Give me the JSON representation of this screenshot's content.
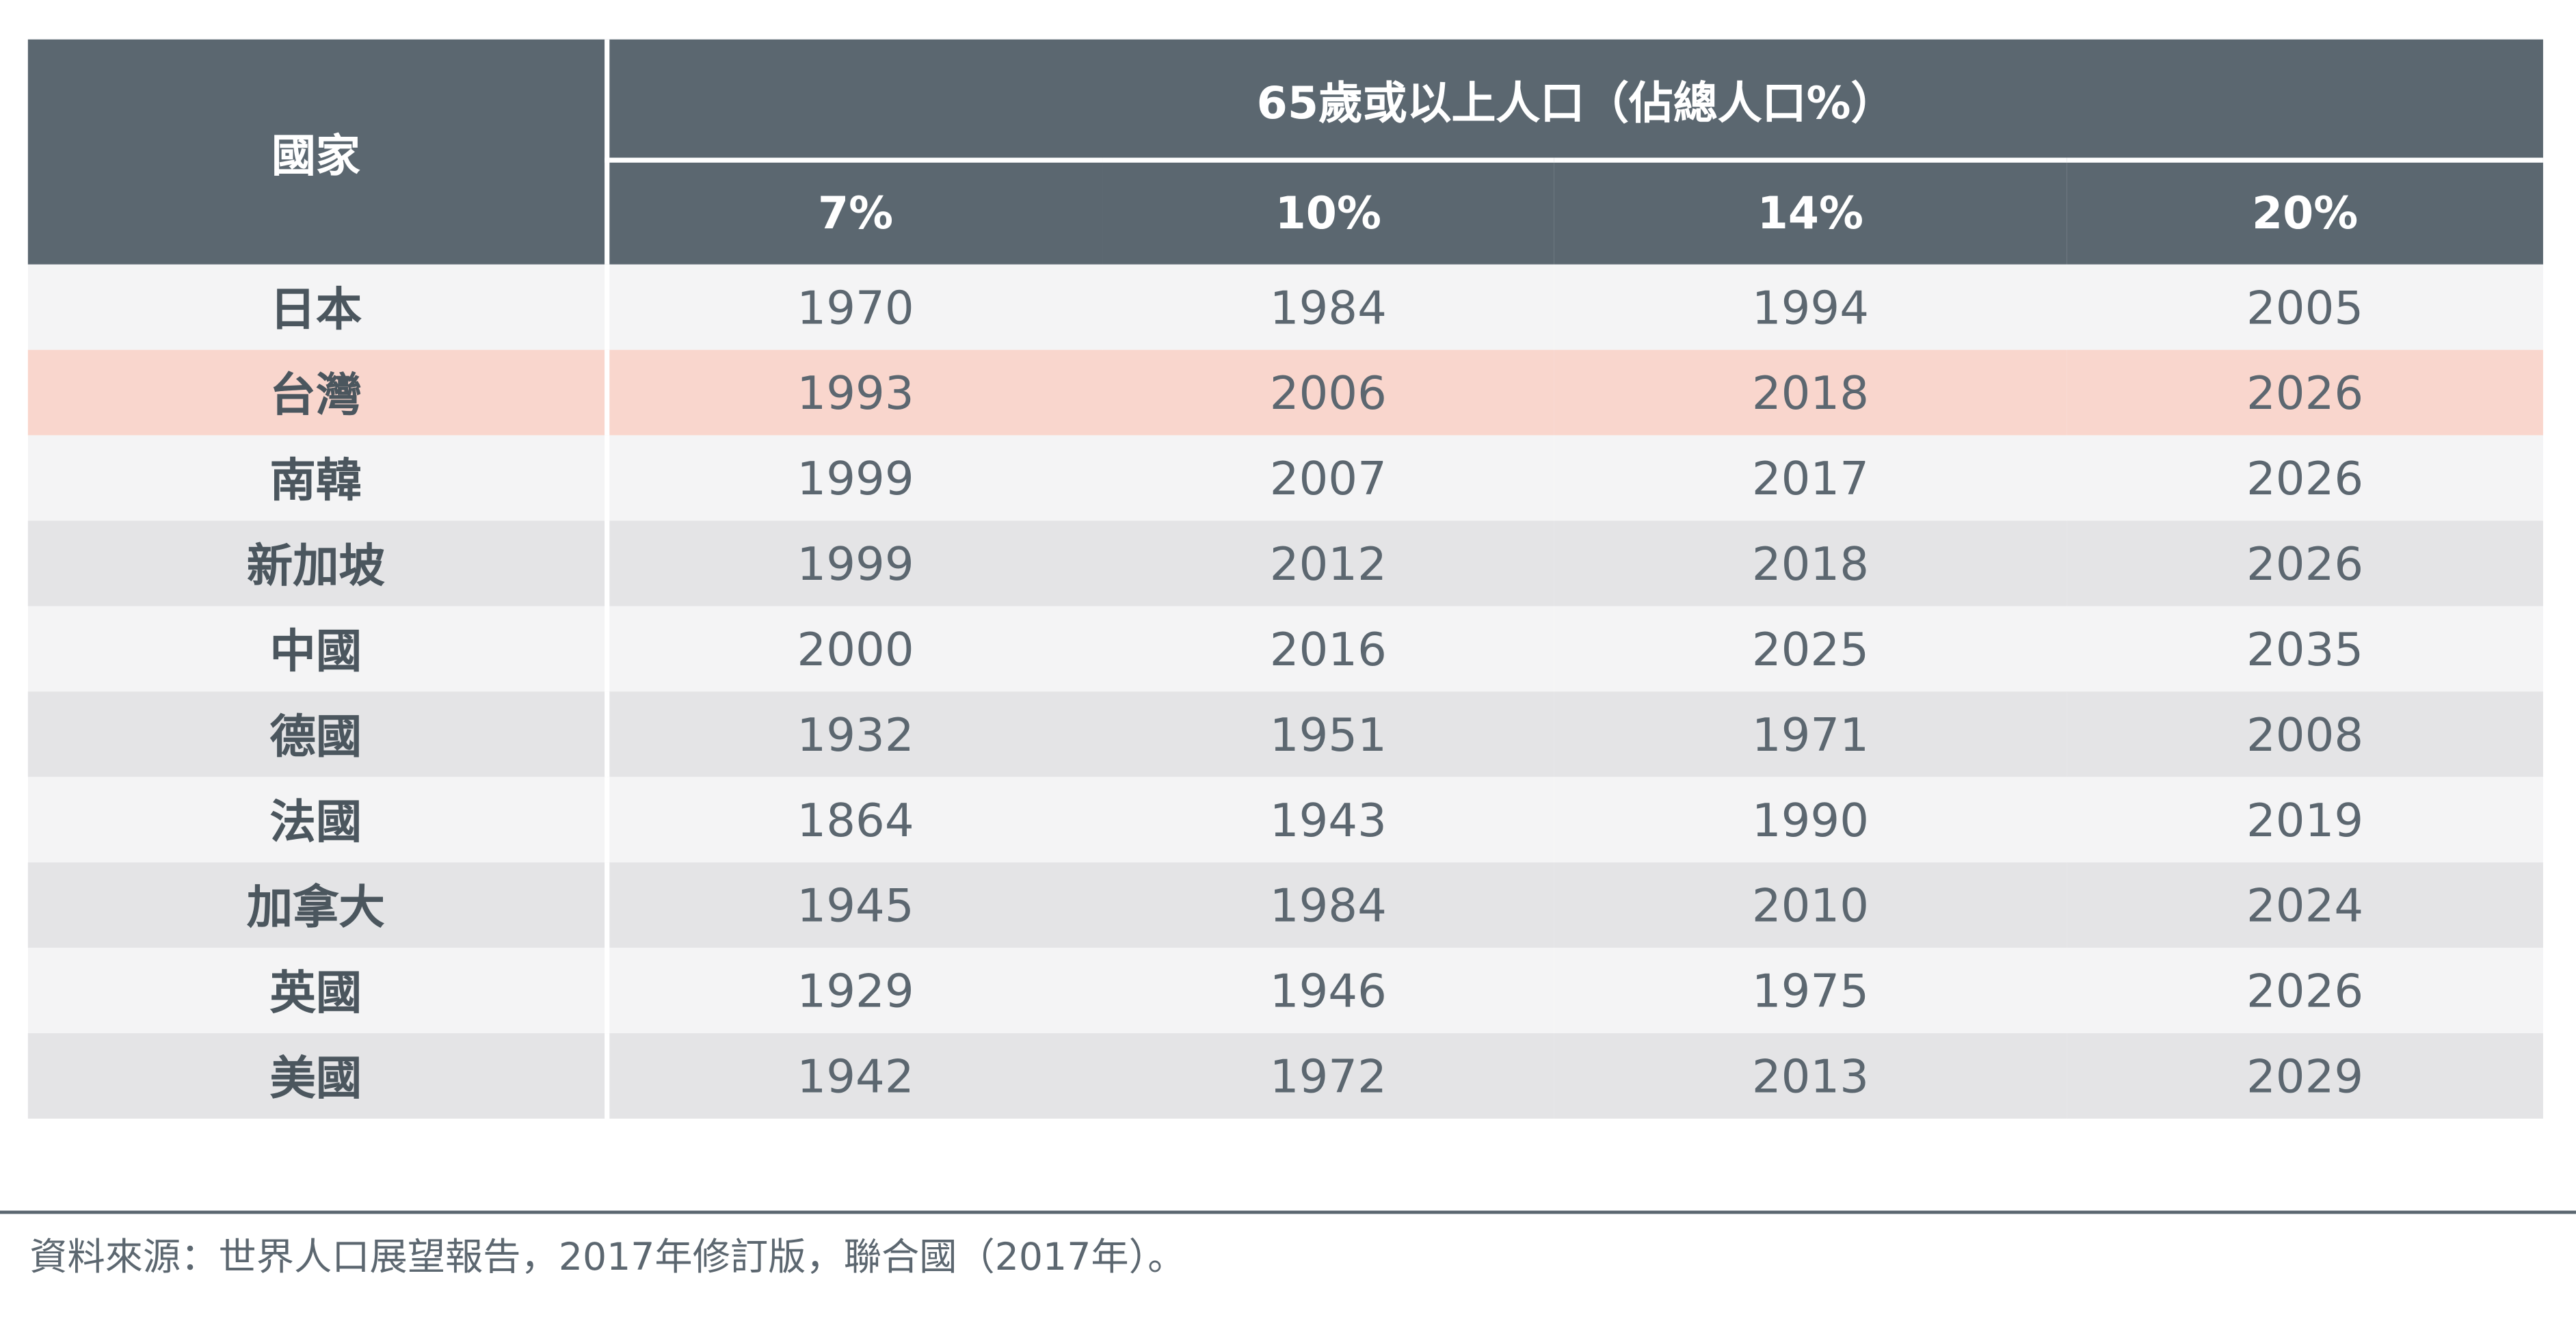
{
  "chart_data": {
    "type": "table",
    "header": {
      "country_label": "國家",
      "group_label": "65歲或以上人口（佔總人口%）",
      "columns": [
        "7%",
        "10%",
        "14%",
        "20%"
      ]
    },
    "rows": [
      {
        "country": "日本",
        "values": [
          "1970",
          "1984",
          "1994",
          "2005"
        ]
      },
      {
        "country": "台灣",
        "values": [
          "1993",
          "2006",
          "2018",
          "2026"
        ],
        "highlight": true
      },
      {
        "country": "南韓",
        "values": [
          "1999",
          "2007",
          "2017",
          "2026"
        ]
      },
      {
        "country": "新加坡",
        "values": [
          "1999",
          "2012",
          "2018",
          "2026"
        ]
      },
      {
        "country": "中國",
        "values": [
          "2000",
          "2016",
          "2025",
          "2035"
        ]
      },
      {
        "country": "德國",
        "values": [
          "1932",
          "1951",
          "1971",
          "2008"
        ]
      },
      {
        "country": "法國",
        "values": [
          "1864",
          "1943",
          "1990",
          "2019"
        ]
      },
      {
        "country": "加拿大",
        "values": [
          "1945",
          "1984",
          "2010",
          "2024"
        ]
      },
      {
        "country": "英國",
        "values": [
          "1929",
          "1946",
          "1975",
          "2026"
        ]
      },
      {
        "country": "美國",
        "values": [
          "1942",
          "1972",
          "2013",
          "2029"
        ]
      }
    ],
    "source": "資料來源：世界人口展望報告，2017年修訂版，聯合國（2017年）。"
  },
  "colors": {
    "header_bg": "#5b6770",
    "highlight_row": "#f9d6cd",
    "row_light": "#f4f4f5",
    "row_dark": "#e4e4e6",
    "text": "#5c6770"
  }
}
